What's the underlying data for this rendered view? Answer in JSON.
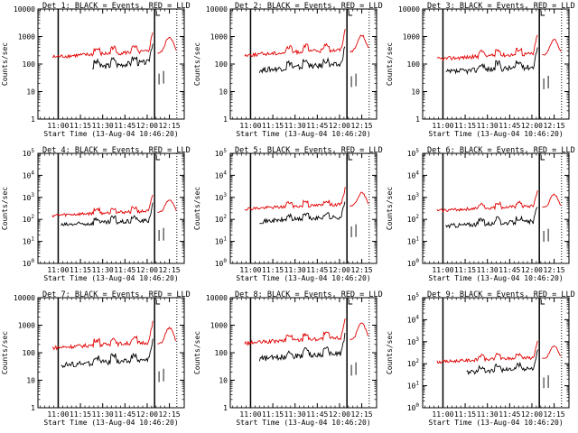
{
  "chart_data": [
    {
      "type": "line",
      "title": "Det 1: BLACK = Events, RED = LLD",
      "xlabel": "Start Time (13-Aug-04 10:46:20)",
      "ylabel": "Counts/sec",
      "yscale": "log",
      "ylim": [
        1,
        10000
      ],
      "ytick_style": "decimal",
      "ytick_labels": [
        "1",
        "10",
        "100",
        "1000",
        "10000"
      ],
      "xtick_labels": [
        "11:00",
        "11:15",
        "11:30",
        "11:45",
        "12:00",
        "12:15"
      ],
      "xlim_min": [
        54,
        140
      ],
      "series": [
        {
          "name": "Events",
          "color": "#000000",
          "base": 75,
          "start": 83
        },
        {
          "name": "LLD",
          "color": "#e00000",
          "base": 180,
          "start": 56
        }
      ]
    },
    {
      "type": "line",
      "title": "Det 2: BLACK = Events, RED = LLD",
      "xlabel": "Start Time (13-Aug-04 10:46:20)",
      "ylabel": "Counts/sec",
      "yscale": "log",
      "ylim": [
        1,
        10000
      ],
      "ytick_style": "decimal",
      "ytick_labels": [
        "1",
        "10",
        "100",
        "1000",
        "10000"
      ],
      "xtick_labels": [
        "11:00",
        "11:15",
        "11:30",
        "11:45",
        "12:00",
        "12:15"
      ],
      "xlim_min": [
        54,
        140
      ],
      "series": [
        {
          "name": "Events",
          "color": "#000000",
          "base": 60,
          "start": 66
        },
        {
          "name": "LLD",
          "color": "#e00000",
          "base": 210,
          "start": 56
        }
      ]
    },
    {
      "type": "line",
      "title": "Det 3: BLACK = Events, RED = LLD",
      "xlabel": "Start Time (13-Aug-04 10:46:20)",
      "ylabel": "Counts/sec",
      "yscale": "log",
      "ylim": [
        1,
        10000
      ],
      "ytick_style": "decimal",
      "ytick_labels": [
        "1",
        "10",
        "100",
        "1000",
        "10000"
      ],
      "xtick_labels": [
        "11:00",
        "11:15",
        "11:30",
        "11:45",
        "12:00",
        "12:15"
      ],
      "xlim_min": [
        54,
        140
      ],
      "series": [
        {
          "name": "Events",
          "color": "#000000",
          "base": 50,
          "start": 62
        },
        {
          "name": "LLD",
          "color": "#e00000",
          "base": 150,
          "start": 56
        }
      ]
    },
    {
      "type": "line",
      "title": "Det 4: BLACK = Events, RED = LLD",
      "xlabel": "Start Time (13-Aug-04 10:46:20)",
      "ylabel": "Counts/sec",
      "yscale": "log",
      "ylim": [
        1,
        100000
      ],
      "ytick_style": "exp",
      "ytick_labels": [
        "10",
        "10",
        "10",
        "10",
        "10",
        "10"
      ],
      "ytick_exponents": [
        "0",
        "1",
        "2",
        "3",
        "4",
        "5"
      ],
      "xtick_labels": [
        "11:00",
        "11:15",
        "11:30",
        "11:45",
        "12:00",
        "12:15"
      ],
      "xlim_min": [
        54,
        140
      ],
      "series": [
        {
          "name": "Events",
          "color": "#000000",
          "base": 55,
          "start": 62
        },
        {
          "name": "LLD",
          "color": "#e00000",
          "base": 150,
          "start": 56
        }
      ]
    },
    {
      "type": "line",
      "title": "Det 5: BLACK = Events, RED = LLD",
      "xlabel": "Start Time (13-Aug-04 10:46:20)",
      "ylabel": "Counts/sec",
      "yscale": "log",
      "ylim": [
        1,
        100000
      ],
      "ytick_style": "exp",
      "ytick_labels": [
        "10",
        "10",
        "10",
        "10",
        "10",
        "10"
      ],
      "ytick_exponents": [
        "0",
        "1",
        "2",
        "3",
        "4",
        "5"
      ],
      "xtick_labels": [
        "11:00",
        "11:15",
        "11:30",
        "11:45",
        "12:00",
        "12:15"
      ],
      "xlim_min": [
        54,
        140
      ],
      "series": [
        {
          "name": "Events",
          "color": "#000000",
          "base": 80,
          "start": 66
        },
        {
          "name": "LLD",
          "color": "#e00000",
          "base": 300,
          "start": 56
        }
      ]
    },
    {
      "type": "line",
      "title": "Det 6: BLACK = Events, RED = LLD",
      "xlabel": "Start Time (13-Aug-04 10:46:20)",
      "ylabel": "Counts/sec",
      "yscale": "log",
      "ylim": [
        1,
        100000
      ],
      "ytick_style": "exp",
      "ytick_labels": [
        "10",
        "10",
        "10",
        "10",
        "10",
        "10"
      ],
      "ytick_exponents": [
        "0",
        "1",
        "2",
        "3",
        "4",
        "5"
      ],
      "xtick_labels": [
        "11:00",
        "11:15",
        "11:30",
        "11:45",
        "12:00",
        "12:15"
      ],
      "xlim_min": [
        54,
        140
      ],
      "series": [
        {
          "name": "Events",
          "color": "#000000",
          "base": 50,
          "start": 62
        },
        {
          "name": "LLD",
          "color": "#e00000",
          "base": 250,
          "start": 56
        }
      ]
    },
    {
      "type": "line",
      "title": "Det 7: BLACK = Events, RED = LLD",
      "xlabel": "Start Time (13-Aug-04 10:46:20)",
      "ylabel": "Counts/sec",
      "yscale": "log",
      "ylim": [
        1,
        10000
      ],
      "ytick_style": "decimal",
      "ytick_labels": [
        "1",
        "10",
        "100",
        "1000",
        "10000"
      ],
      "xtick_labels": [
        "11:00",
        "11:15",
        "11:30",
        "11:45",
        "12:00",
        "12:15"
      ],
      "xlim_min": [
        54,
        140
      ],
      "series": [
        {
          "name": "Events",
          "color": "#000000",
          "base": 35,
          "start": 62
        },
        {
          "name": "LLD",
          "color": "#e00000",
          "base": 150,
          "start": 56
        }
      ]
    },
    {
      "type": "line",
      "title": "Det 8: BLACK = Events, RED = LLD",
      "xlabel": "Start Time (13-Aug-04 10:46:20)",
      "ylabel": "Counts/sec",
      "yscale": "log",
      "ylim": [
        1,
        10000
      ],
      "ytick_style": "decimal",
      "ytick_labels": [
        "1",
        "10",
        "100",
        "1000",
        "10000"
      ],
      "xtick_labels": [
        "11:00",
        "11:15",
        "11:30",
        "11:45",
        "12:00",
        "12:15"
      ],
      "xlim_min": [
        54,
        140
      ],
      "series": [
        {
          "name": "Events",
          "color": "#000000",
          "base": 60,
          "start": 66
        },
        {
          "name": "LLD",
          "color": "#e00000",
          "base": 220,
          "start": 56
        }
      ]
    },
    {
      "type": "line",
      "title": "Det 9: BLACK = Events, RED = LLD",
      "xlabel": "Start Time (13-Aug-04 10:46:20)",
      "ylabel": "Counts/sec",
      "yscale": "log",
      "ylim": [
        1,
        100000
      ],
      "ytick_style": "exp",
      "ytick_labels": [
        "10",
        "10",
        "10",
        "10",
        "10",
        "10"
      ],
      "ytick_exponents": [
        "0",
        "1",
        "2",
        "3",
        "4",
        "5"
      ],
      "xtick_labels": [
        "11:00",
        "11:15",
        "11:30",
        "11:45",
        "12:00",
        "12:15"
      ],
      "xlim_min": [
        54,
        140
      ],
      "series": [
        {
          "name": "Events",
          "color": "#000000",
          "base": 40,
          "start": 76
        },
        {
          "name": "LLD",
          "color": "#e00000",
          "base": 120,
          "start": 56
        }
      ]
    }
  ]
}
